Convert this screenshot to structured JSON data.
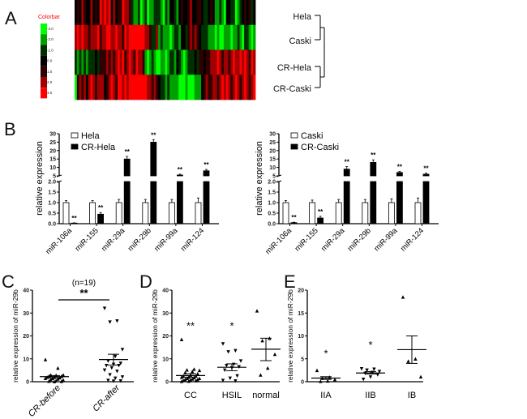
{
  "panels": {
    "A": "A",
    "B": "B",
    "C": "C",
    "D": "D",
    "E": "E"
  },
  "heatmap": {
    "colorbar_title": "Colorbar",
    "colorbar_title_color": "#ff0000",
    "colorbar_ticks": [
      "-3.0",
      "-2.0",
      "-1.0",
      "0.0",
      "1.0",
      "2.0",
      "3.0"
    ],
    "colorbar_colors": [
      "#00ff00",
      "#00a000",
      "#003000",
      "#000000",
      "#300000",
      "#a00000",
      "#ff0000"
    ],
    "rows": [
      "Hela",
      "Caski",
      "CR-Hela",
      "CR-Caski"
    ],
    "matrix_codes_note": "0..6 map to colorbar values -3..3",
    "matrix": [
      "34354335343656563534465542112012011222102133213433453344322343112103322012343423",
      "56565545556455665565546566666665542251211101221332454543222111010011101121022101",
      "21212122232444545456564565465541012100110122132101222324434455565455456556565465",
      "04545356545553456546656566666666554543221211110001000111345445545656545654565456"
    ]
  },
  "chart_data": [
    {
      "type": "bar",
      "panel": "B-left",
      "ylabel": "relative expression",
      "categories": [
        "miR-106a",
        "miR-155",
        "miR-29a",
        "miR-29b",
        "miR-99a",
        "miR-124"
      ],
      "y_lower_ticks": [
        "0.0",
        "0.5",
        "1.0",
        "1.5",
        "2.0"
      ],
      "y_upper_ticks": [
        "5",
        "10",
        "15",
        "20",
        "25",
        "30"
      ],
      "ylim_lower": [
        0,
        2
      ],
      "ylim_upper": [
        5,
        30
      ],
      "series": [
        {
          "name": "Hela",
          "fill": "#ffffff",
          "values": [
            1,
            1,
            1,
            1,
            1,
            1
          ],
          "errors": [
            0.1,
            0.1,
            0.15,
            0.15,
            0.15,
            0.22
          ]
        },
        {
          "name": "CR-Hela",
          "fill": "#000000",
          "values": [
            0.03,
            0.45,
            15,
            25,
            5.5,
            8
          ],
          "errors": [
            0.01,
            0.08,
            1.5,
            1.5,
            0.5,
            0.8
          ]
        }
      ],
      "annotations": [
        "**",
        "**",
        "**",
        "**",
        "**",
        "**"
      ]
    },
    {
      "type": "bar",
      "panel": "B-right",
      "ylabel": "relative expression",
      "categories": [
        "miR-106a",
        "miR-155",
        "miR-29a",
        "miR-29b",
        "miR-99a",
        "miR-124"
      ],
      "y_lower_ticks": [
        "0.0",
        "0.5",
        "1.0",
        "1.5",
        "2.0"
      ],
      "y_upper_ticks": [
        "5",
        "10",
        "15",
        "20",
        "25",
        "30"
      ],
      "ylim_lower": [
        0,
        2
      ],
      "ylim_upper": [
        5,
        30
      ],
      "series": [
        {
          "name": "Caski",
          "fill": "#ffffff",
          "values": [
            1,
            1,
            1,
            1,
            1,
            1
          ],
          "errors": [
            0.1,
            0.12,
            0.15,
            0.15,
            0.18,
            0.22
          ]
        },
        {
          "name": "CR-Caski",
          "fill": "#000000",
          "values": [
            0.05,
            0.27,
            9,
            13,
            7,
            6
          ],
          "errors": [
            0.02,
            0.08,
            1.5,
            1.5,
            0.6,
            0.6
          ]
        }
      ],
      "annotations": [
        "**",
        "**",
        "**",
        "**",
        "**",
        "**"
      ]
    },
    {
      "type": "scatter",
      "panel": "C",
      "ylabel": "relative expression of miR-29b",
      "ylim": [
        0,
        40
      ],
      "yticks": [
        "0",
        "10",
        "20",
        "30",
        "40"
      ],
      "categories": [
        "CR-before",
        "CR-after"
      ],
      "markers": [
        "triangle-up",
        "triangle-down"
      ],
      "values": [
        [
          9.7,
          6,
          3,
          3,
          2.8,
          2.5,
          2.4,
          2,
          2,
          1.8,
          1.5,
          1.5,
          1.2,
          1,
          0.8,
          0.5,
          0.3,
          0.2,
          0.1
        ],
        [
          32,
          26.5,
          26,
          14,
          11,
          9,
          8,
          7.5,
          7,
          7,
          6,
          5,
          4.5,
          3,
          2,
          1.5,
          0.5,
          0.3,
          0.2
        ]
      ],
      "mean": [
        2.2,
        9.7
      ],
      "sem": [
        [
          1.7,
          2.7
        ],
        [
          7.3,
          12
        ]
      ],
      "n_label": "(n=19)",
      "significance": "**",
      "stars": [
        "",
        ""
      ]
    },
    {
      "type": "scatter",
      "panel": "D",
      "ylabel": "relative expression of miR-29b",
      "ylim": [
        0,
        40
      ],
      "yticks": [
        "0",
        "10",
        "20",
        "30",
        "40"
      ],
      "categories": [
        "CC",
        "HSIL",
        "normal"
      ],
      "markers": [
        "triangle-up",
        "triangle-down",
        "triangle-up"
      ],
      "values": [
        [
          18.5,
          5.5,
          5.2,
          5,
          4.5,
          4,
          3.5,
          3,
          2.5,
          2.5,
          2,
          2,
          1.8,
          1.5,
          1.5,
          1.2,
          1,
          1,
          0.8,
          0.6,
          0.5,
          0.3,
          0.2
        ],
        [
          16.5,
          13.5,
          13,
          9,
          7.5,
          7,
          6.5,
          6,
          5,
          2.5,
          1.5,
          0.5,
          0.3
        ],
        [
          31,
          19,
          18,
          12,
          6,
          3
        ]
      ],
      "mean": [
        2.7,
        6.3,
        14.2
      ],
      "sem": [
        [
          2,
          3.5
        ],
        [
          4.8,
          7.8
        ],
        [
          9.2,
          19
        ]
      ],
      "stars": [
        "**",
        "*",
        ""
      ]
    },
    {
      "type": "scatter",
      "panel": "E",
      "ylabel": "relative expression of miR-29b",
      "ylim": [
        0,
        20
      ],
      "yticks": [
        "0",
        "5",
        "10",
        "15",
        "20"
      ],
      "categories": [
        "IIA",
        "IIB",
        "IB"
      ],
      "markers": [
        "triangle-up",
        "triangle-down",
        "triangle-up"
      ],
      "values": [
        [
          2.5,
          1,
          0.8,
          0.5,
          0.2,
          0.1
        ],
        [
          2.8,
          2.7,
          2.5,
          2.2,
          2,
          1.8,
          1.5,
          1,
          0.5
        ],
        [
          18.5,
          5,
          4.5,
          1.1
        ]
      ],
      "mean": [
        0.8,
        1.9,
        7
      ],
      "sem": [
        [
          0.5,
          1.1
        ],
        [
          1.7,
          2.2
        ],
        [
          4,
          10
        ]
      ],
      "stars": [
        "*",
        "*",
        ""
      ]
    }
  ]
}
